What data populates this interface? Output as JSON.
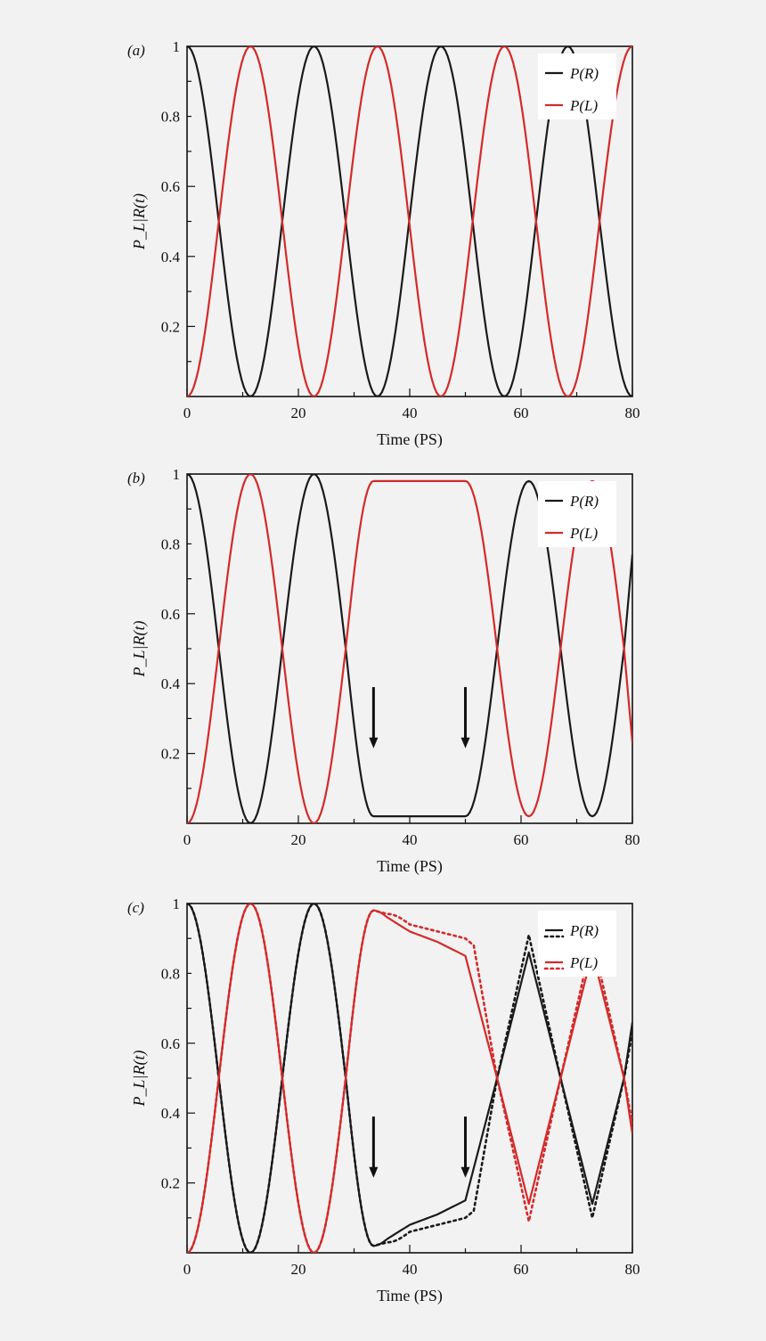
{
  "chart_data": [
    {
      "type": "line",
      "panel_label": "(a)",
      "xlabel": "Time (PS)",
      "ylabel": "P_L|R(t)",
      "xlim": [
        0,
        80
      ],
      "ylim": [
        0,
        1
      ],
      "xticks": [
        "0",
        "20",
        "40",
        "60",
        "80"
      ],
      "yticks": [
        "0.2",
        "0.4",
        "0.6",
        "0.8",
        "1"
      ],
      "legend": {
        "position": "top-right",
        "entries": [
          "P(R)",
          "P(L)"
        ]
      },
      "series": [
        {
          "name": "P(R)",
          "color": "#1a1a1a",
          "style": "solid",
          "x": [
            0,
            5.7,
            11.4,
            17.1,
            22.8,
            28.5,
            34.2,
            39.9,
            45.6,
            51.3,
            57,
            62.7,
            68.4,
            74.1,
            80
          ],
          "y": [
            1,
            0.5,
            0,
            0.5,
            1,
            0.5,
            0,
            0.5,
            1,
            0.5,
            0,
            0.5,
            1,
            0.5,
            0
          ]
        },
        {
          "name": "P(L)",
          "color": "#d42a2a",
          "style": "solid",
          "x": [
            0,
            5.7,
            11.4,
            17.1,
            22.8,
            28.5,
            34.2,
            39.9,
            45.6,
            51.3,
            57,
            62.7,
            68.4,
            74.1,
            80
          ],
          "y": [
            0,
            0.5,
            1,
            0.5,
            0,
            0.5,
            1,
            0.5,
            0,
            0.5,
            1,
            0.5,
            0,
            0.5,
            1
          ]
        }
      ],
      "arrows_at_x": []
    },
    {
      "type": "line",
      "panel_label": "(b)",
      "xlabel": "Time (PS)",
      "ylabel": "P_L|R(t)",
      "xlim": [
        0,
        80
      ],
      "ylim": [
        0,
        1
      ],
      "xticks": [
        "0",
        "20",
        "40",
        "60",
        "80"
      ],
      "yticks": [
        "0.2",
        "0.4",
        "0.6",
        "0.8",
        "1"
      ],
      "legend": {
        "position": "top-right",
        "entries": [
          "P(R)",
          "P(L)"
        ]
      },
      "series": [
        {
          "name": "P(R)",
          "color": "#1a1a1a",
          "style": "solid",
          "x": [
            0,
            5.7,
            11.4,
            17.1,
            22.8,
            28.5,
            33.5,
            40,
            46,
            50,
            55.7,
            61.4,
            67.1,
            72.8,
            78.5,
            80
          ],
          "y": [
            1,
            0.5,
            0,
            0.5,
            1,
            0.5,
            0.02,
            0.02,
            0.02,
            0.02,
            0.5,
            0.98,
            0.5,
            0.02,
            0.5,
            0.77
          ]
        },
        {
          "name": "P(L)",
          "color": "#d42a2a",
          "style": "solid",
          "x": [
            0,
            5.7,
            11.4,
            17.1,
            22.8,
            28.5,
            33.5,
            40,
            46,
            50,
            55.7,
            61.4,
            67.1,
            72.8,
            78.5,
            80
          ],
          "y": [
            0,
            0.5,
            1,
            0.5,
            0,
            0.5,
            0.98,
            0.98,
            0.98,
            0.98,
            0.5,
            0.02,
            0.5,
            0.98,
            0.5,
            0.23
          ]
        }
      ],
      "arrows_at_x": [
        33.5,
        50
      ]
    },
    {
      "type": "line",
      "panel_label": "(c)",
      "xlabel": "Time (PS)",
      "ylabel": "P_L|R(t)",
      "xlim": [
        0,
        80
      ],
      "ylim": [
        0,
        1
      ],
      "xticks": [
        "0",
        "20",
        "40",
        "60",
        "80"
      ],
      "yticks": [
        "0.2",
        "0.4",
        "0.6",
        "0.8",
        "1"
      ],
      "legend": {
        "position": "top-right",
        "entries": [
          "P(R)",
          "P(L)"
        ]
      },
      "series": [
        {
          "name": "P(R)",
          "color": "#1a1a1a",
          "style": "solid",
          "x": [
            0,
            5.7,
            11.4,
            17.1,
            22.8,
            28.5,
            33.5,
            36,
            40,
            45,
            50,
            55.7,
            61.4,
            67.1,
            72.8,
            78.5,
            80
          ],
          "y": [
            1,
            0.5,
            0,
            0.5,
            1,
            0.5,
            0.02,
            0.04,
            0.08,
            0.11,
            0.15,
            0.5,
            0.86,
            0.5,
            0.14,
            0.5,
            0.66
          ]
        },
        {
          "name": "P(R)",
          "color": "#1a1a1a",
          "style": "dotted",
          "x": [
            0,
            5.7,
            11.4,
            17.1,
            22.8,
            28.5,
            33.5,
            36,
            40,
            45,
            50,
            51.5,
            55.7,
            61.4,
            67.1,
            72.8,
            78.5,
            80
          ],
          "y": [
            1,
            0.5,
            0,
            0.5,
            1,
            0.5,
            0.02,
            0.03,
            0.06,
            0.08,
            0.1,
            0.12,
            0.5,
            0.91,
            0.5,
            0.1,
            0.5,
            0.63
          ]
        },
        {
          "name": "P(L)",
          "color": "#d42a2a",
          "style": "solid",
          "x": [
            0,
            5.7,
            11.4,
            17.1,
            22.8,
            28.5,
            33.5,
            36,
            40,
            45,
            50,
            55.7,
            61.4,
            67.1,
            72.8,
            78.5,
            80
          ],
          "y": [
            0,
            0.5,
            1,
            0.5,
            0,
            0.5,
            0.98,
            0.96,
            0.92,
            0.89,
            0.85,
            0.5,
            0.14,
            0.5,
            0.86,
            0.5,
            0.34
          ]
        },
        {
          "name": "P(L)",
          "color": "#d42a2a",
          "style": "dotted",
          "x": [
            0,
            5.7,
            11.4,
            17.1,
            22.8,
            28.5,
            33.5,
            36,
            40,
            45,
            50,
            51.5,
            55.7,
            61.4,
            67.1,
            72.8,
            78.5,
            80
          ],
          "y": [
            0,
            0.5,
            1,
            0.5,
            0,
            0.5,
            0.98,
            0.97,
            0.94,
            0.92,
            0.9,
            0.88,
            0.5,
            0.09,
            0.5,
            0.9,
            0.5,
            0.37
          ]
        }
      ],
      "arrows_at_x": [
        33.5,
        50
      ]
    }
  ]
}
